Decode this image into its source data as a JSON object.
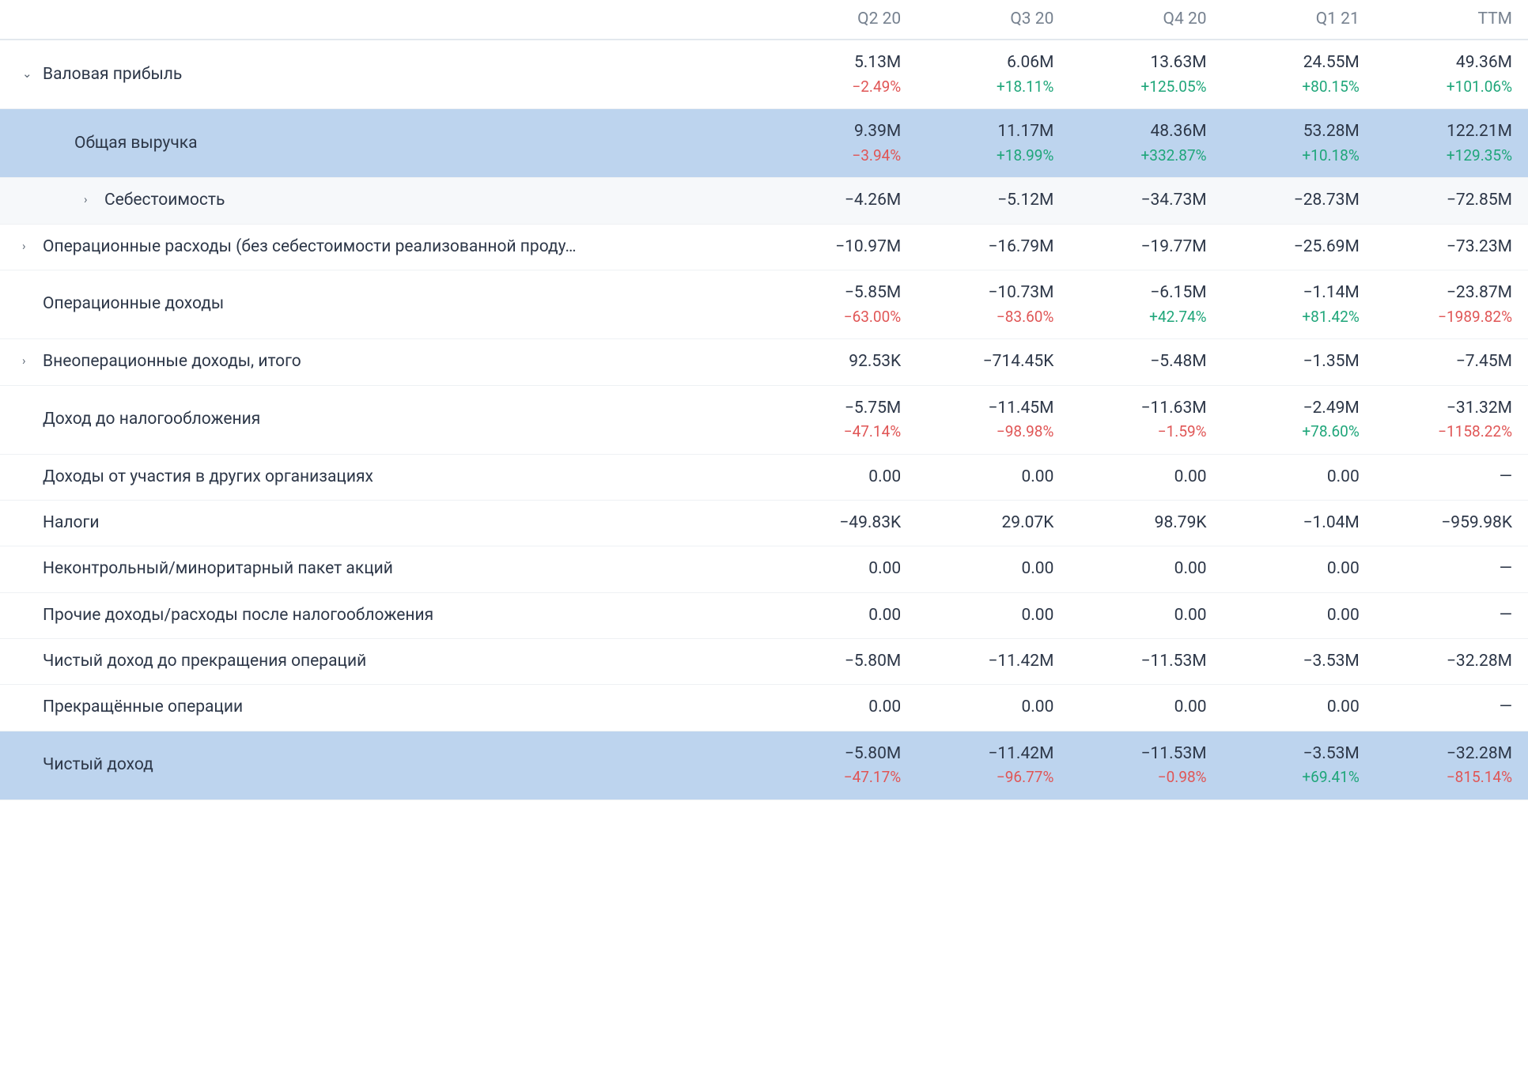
{
  "columns": [
    "Q2 20",
    "Q3 20",
    "Q4 20",
    "Q1 21",
    "TTM"
  ],
  "colors": {
    "positive": "#1fa67a",
    "negative": "#e05656",
    "text": "#2d3748",
    "muted": "#778290",
    "row_highlight_blue": "#bdd4ee",
    "row_highlight_grey": "#f1f3f6",
    "border": "#eef1f4"
  },
  "rows": [
    {
      "id": "gross-profit",
      "label": "Валовая прибыль",
      "indent": 0,
      "expander": "down",
      "values": [
        "5.13M",
        "6.06M",
        "13.63M",
        "24.55M",
        "49.36M"
      ],
      "changes": [
        "−2.49%",
        "+18.11%",
        "+125.05%",
        "+80.15%",
        "+101.06%"
      ],
      "change_signs": [
        "neg",
        "pos",
        "pos",
        "pos",
        "pos"
      ]
    },
    {
      "id": "total-revenue",
      "label": "Общая выручка",
      "indent": 1,
      "expander": null,
      "highlight": "blue",
      "values": [
        "9.39M",
        "11.17M",
        "48.36M",
        "53.28M",
        "122.21M"
      ],
      "changes": [
        "−3.94%",
        "+18.99%",
        "+332.87%",
        "+10.18%",
        "+129.35%"
      ],
      "change_signs": [
        "neg",
        "pos",
        "pos",
        "pos",
        "pos"
      ]
    },
    {
      "id": "cost-of-goods",
      "label": "Себестоимость",
      "indent": 2,
      "expander": "right",
      "highlight": "grey2",
      "values": [
        "−4.26M",
        "−5.12M",
        "−34.73M",
        "−28.73M",
        "−72.85M"
      ]
    },
    {
      "id": "opex",
      "label": "Операционные расходы (без себестоимости реализованной проду…",
      "indent": 0,
      "expander": "right",
      "truncate": true,
      "values": [
        "−10.97M",
        "−16.79M",
        "−19.77M",
        "−25.69M",
        "−73.23M"
      ]
    },
    {
      "id": "operating-income",
      "label": "Операционные доходы",
      "indent": 0,
      "expander": null,
      "values": [
        "−5.85M",
        "−10.73M",
        "−6.15M",
        "−1.14M",
        "−23.87M"
      ],
      "changes": [
        "−63.00%",
        "−83.60%",
        "+42.74%",
        "+81.42%",
        "−1989.82%"
      ],
      "change_signs": [
        "neg",
        "neg",
        "pos",
        "pos",
        "neg"
      ]
    },
    {
      "id": "non-op-income",
      "label": "Внеоперационные доходы, итого",
      "indent": 0,
      "expander": "right",
      "values": [
        "92.53K",
        "−714.45K",
        "−5.48M",
        "−1.35M",
        "−7.45M"
      ]
    },
    {
      "id": "pre-tax-income",
      "label": "Доход до налогообложения",
      "indent": 0,
      "expander": null,
      "values": [
        "−5.75M",
        "−11.45M",
        "−11.63M",
        "−2.49M",
        "−31.32M"
      ],
      "changes": [
        "−47.14%",
        "−98.98%",
        "−1.59%",
        "+78.60%",
        "−1158.22%"
      ],
      "change_signs": [
        "neg",
        "neg",
        "neg",
        "pos",
        "neg"
      ]
    },
    {
      "id": "equity-in-subs",
      "label": "Доходы от участия в других организациях",
      "indent": 0,
      "expander": null,
      "values": [
        "0.00",
        "0.00",
        "0.00",
        "0.00",
        "—"
      ]
    },
    {
      "id": "taxes",
      "label": "Налоги",
      "indent": 0,
      "expander": null,
      "values": [
        "−49.83K",
        "29.07K",
        "98.79K",
        "−1.04M",
        "−959.98K"
      ]
    },
    {
      "id": "minority-interest",
      "label": "Неконтрольный/миноритарный пакет акций",
      "indent": 0,
      "expander": null,
      "values": [
        "0.00",
        "0.00",
        "0.00",
        "0.00",
        "—"
      ]
    },
    {
      "id": "other-post-tax",
      "label": "Прочие доходы/расходы после налогообложения",
      "indent": 0,
      "expander": null,
      "values": [
        "0.00",
        "0.00",
        "0.00",
        "0.00",
        "—"
      ]
    },
    {
      "id": "income-before-discontinued",
      "label": "Чистый доход до прекращения операций",
      "indent": 0,
      "expander": null,
      "values": [
        "−5.80M",
        "−11.42M",
        "−11.53M",
        "−3.53M",
        "−32.28M"
      ]
    },
    {
      "id": "discontinued-ops",
      "label": "Прекращённые операции",
      "indent": 0,
      "expander": null,
      "values": [
        "0.00",
        "0.00",
        "0.00",
        "0.00",
        "—"
      ]
    },
    {
      "id": "net-income",
      "label": "Чистый доход",
      "indent": 0,
      "expander": null,
      "highlight": "blue",
      "values": [
        "−5.80M",
        "−11.42M",
        "−11.53M",
        "−3.53M",
        "−32.28M"
      ],
      "changes": [
        "−47.17%",
        "−96.77%",
        "−0.98%",
        "+69.41%",
        "−815.14%"
      ],
      "change_signs": [
        "neg",
        "neg",
        "neg",
        "pos",
        "neg"
      ]
    }
  ]
}
